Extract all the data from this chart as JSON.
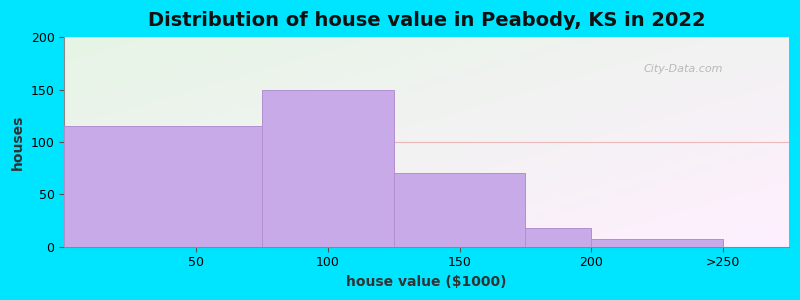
{
  "title": "Distribution of house value in Peabody, KS in 2022",
  "xlabel": "house value ($1000)",
  "ylabel": "houses",
  "bar_labels": [
    "50",
    "100",
    "150",
    "200",
    ">250"
  ],
  "bar_heights": [
    115,
    150,
    70,
    18,
    7
  ],
  "bar_color": "#c9aae8",
  "bar_edgecolor": "#b090d0",
  "ylim": [
    0,
    200
  ],
  "yticks": [
    0,
    50,
    100,
    150,
    200
  ],
  "outer_bg": "#00e5ff",
  "plot_bg_color": "#e8f5e4",
  "title_fontsize": 14,
  "axis_label_fontsize": 10,
  "tick_fontsize": 9,
  "watermark": "City-Data.com",
  "bar_edges": [
    0,
    75,
    125,
    175,
    200,
    250
  ],
  "tick_positions": [
    50,
    100,
    150,
    200,
    250
  ]
}
